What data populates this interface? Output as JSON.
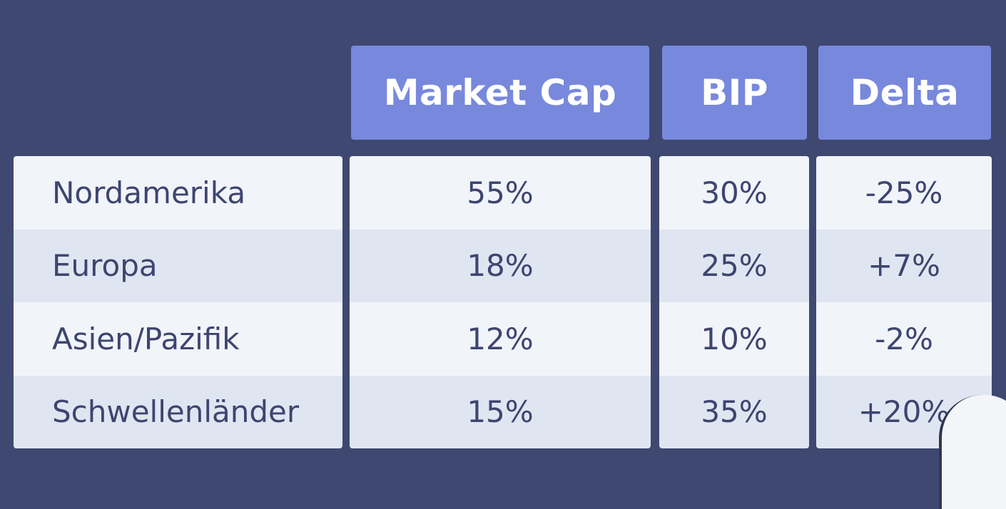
{
  "table": {
    "headers": [
      "Market Cap",
      "BIP",
      "Delta"
    ],
    "rows": [
      {
        "region": "Nordamerika",
        "market_cap": "55%",
        "bip": "30%",
        "delta": "-25%"
      },
      {
        "region": "Europa",
        "market_cap": "18%",
        "bip": "25%",
        "delta": "+7%"
      },
      {
        "region": "Asien/Pazifik",
        "market_cap": "12%",
        "bip": "10%",
        "delta": "-2%"
      },
      {
        "region": "Schwellenländer",
        "market_cap": "15%",
        "bip": "35%",
        "delta": "+20%"
      }
    ]
  },
  "colors": {
    "background": "#3f4870",
    "header": "#7888dc",
    "row_light": "#f1f4f9",
    "row_dark": "#e0e6f1",
    "text": "#3d4570"
  }
}
